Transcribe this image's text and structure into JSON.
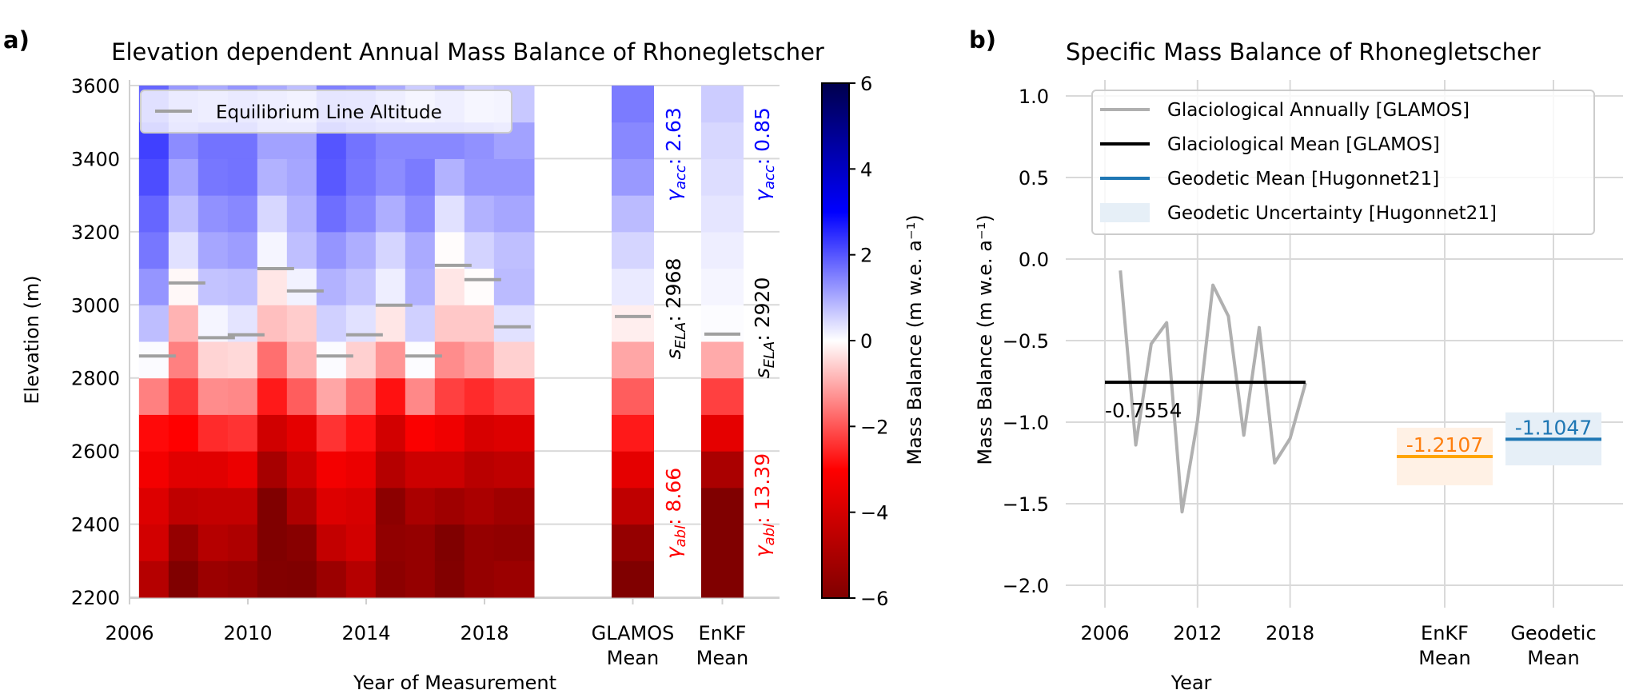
{
  "panels": {
    "a_label": "a)",
    "b_label": "b)"
  },
  "chart_data": [
    {
      "type": "heatmap",
      "title": "Elevation dependent Annual Mass Balance of Rhonegletscher",
      "xlabel": "Year of Measurement",
      "ylabel": "Elevation (m)",
      "x_ticks": [
        "2006",
        "2010",
        "2014",
        "2018"
      ],
      "extra_x_ticks": [
        [
          "GLAMOS",
          "Mean"
        ],
        [
          "EnKF",
          "Mean"
        ]
      ],
      "y_ticks": [
        "2200",
        "2400",
        "2600",
        "2800",
        "3000",
        "3200",
        "3400",
        "3600"
      ],
      "ylim": [
        2200,
        3600
      ],
      "grid": true,
      "colormap": "seismic_r",
      "colorbar": {
        "label": "Mass Balance (m w.e. a⁻¹)",
        "range": [
          -6,
          6
        ],
        "ticks": [
          "−6",
          "−4",
          "−2",
          "0",
          "2",
          "4",
          "6"
        ]
      },
      "legend": {
        "entries": [
          "Equilibrium Line Altitude"
        ],
        "placement": "top-left",
        "color": "#a0a0a0"
      },
      "years": [
        2007,
        2008,
        2009,
        2010,
        2011,
        2012,
        2013,
        2014,
        2015,
        2016,
        2017,
        2018,
        2019
      ],
      "elevation_bins": [
        2200,
        2300,
        2400,
        2500,
        2600,
        2700,
        2800,
        2900,
        3000,
        3100,
        3200,
        3300,
        3400,
        3500
      ],
      "values": [
        [
          -4.75,
          -6,
          -5.35,
          -5.5,
          -5.95,
          -6,
          -5.35,
          -4.75,
          -5.7,
          -5.5,
          -5.95,
          -5.5,
          -5.35
        ],
        [
          -4.05,
          -5.5,
          -4.75,
          -4.9,
          -6,
          -5.8,
          -4.4,
          -4.05,
          -5.6,
          -5.5,
          -6,
          -5.5,
          -5.6
        ],
        [
          -3.8,
          -4.5,
          -4.4,
          -4.4,
          -6,
          -4.9,
          -3.8,
          -3.95,
          -5.7,
          -5.0,
          -5.25,
          -5.0,
          -5.25
        ],
        [
          -3.25,
          -3.7,
          -3.7,
          -3.45,
          -5.1,
          -4.2,
          -3.25,
          -3.45,
          -4.75,
          -4.2,
          -4.2,
          -4.65,
          -4.5
        ],
        [
          -2.9,
          -3.0,
          -2.5,
          -2.4,
          -4.1,
          -3.6,
          -2.4,
          -2.8,
          -4.05,
          -3.1,
          -3.35,
          -3.95,
          -3.8
        ],
        [
          -1.5,
          -2.35,
          -1.35,
          -1.4,
          -2.7,
          -1.9,
          -1.05,
          -1.7,
          -2.8,
          -1.4,
          -2.25,
          -2.5,
          -2.25
        ],
        [
          0.05,
          -1.5,
          -0.5,
          -0.45,
          -1.7,
          -0.9,
          0.05,
          -0.55,
          -1.25,
          0.03,
          -1.35,
          -1.1,
          -0.55
        ],
        [
          0.76,
          -0.9,
          0.12,
          0.32,
          -0.75,
          -0.6,
          0.55,
          0.35,
          -0.3,
          0.55,
          -0.65,
          -0.65,
          0.35
        ],
        [
          1.25,
          -0.08,
          0.7,
          0.75,
          -0.3,
          0.15,
          0.9,
          0.7,
          0.2,
          0.9,
          -0.3,
          -0.03,
          0.8
        ],
        [
          1.6,
          0.35,
          1.05,
          1.15,
          0.12,
          0.75,
          1.25,
          0.95,
          0.5,
          1.0,
          -0.03,
          0.52,
          0.75
        ],
        [
          1.8,
          0.75,
          1.3,
          1.4,
          0.47,
          0.9,
          1.7,
          1.4,
          0.95,
          1.35,
          0.35,
          0.9,
          1.05
        ],
        [
          2.1,
          1.05,
          1.6,
          1.65,
          0.9,
          1.05,
          1.95,
          1.6,
          1.35,
          1.55,
          0.9,
          1.25,
          1.25
        ],
        [
          2.25,
          1.35,
          1.65,
          1.65,
          1.1,
          1.1,
          2.0,
          1.65,
          1.4,
          1.4,
          1.4,
          1.3,
          1.1
        ],
        [
          1.8,
          1.2,
          1.0,
          1.25,
          1.0,
          0.75,
          1.5,
          1.4,
          1.0,
          0.6,
          0.95,
          0.55,
          0.65
        ]
      ],
      "ela": [
        2860,
        3060,
        2910,
        2918,
        3099,
        3038,
        2860,
        2918,
        2999,
        2860,
        3108,
        3069,
        2940
      ],
      "mean_columns": [
        {
          "name": "GLAMOS Mean",
          "values": [
            -6.0,
            -5.5,
            -4.5,
            -3.6,
            -2.7,
            -1.9,
            -1.05,
            -0.2,
            0.25,
            0.5,
            0.8,
            1.2,
            1.4,
            1.55
          ],
          "ela": 2968,
          "annotations": {
            "acc": {
              "symbol": "γ",
              "sub": "acc",
              "value": ": 2.63",
              "color": "#0000ff"
            },
            "ela": {
              "symbol": "s",
              "sub": "ELA",
              "value": ": 2968",
              "color": "#000000"
            },
            "abl": {
              "symbol": "γ",
              "sub": "abl",
              "value": ": 8.66",
              "color": "#ff0000"
            }
          }
        },
        {
          "name": "EnKF Mean",
          "values": [
            -6,
            -6,
            -6,
            -5.0,
            -3.6,
            -2.25,
            -1.0,
            0.03,
            0.12,
            0.2,
            0.3,
            0.4,
            0.47,
            0.6
          ],
          "ela": 2920,
          "annotations": {
            "acc": {
              "symbol": "γ",
              "sub": "acc",
              "value": ": 0.85",
              "color": "#0000ff"
            },
            "ela": {
              "symbol": "s",
              "sub": "ELA",
              "value": ": 2920",
              "color": "#000000"
            },
            "abl": {
              "symbol": "γ",
              "sub": "abl",
              "value": ": 13.39",
              "color": "#ff0000"
            }
          }
        }
      ]
    },
    {
      "type": "line",
      "title": "Specific Mass Balance of Rhonegletscher",
      "xlabel": "Year",
      "ylabel": "Mass Balance (m w.e. a⁻¹)",
      "x_ticks": [
        "2006",
        "2012",
        "2018"
      ],
      "extra_x_ticks": [
        [
          "EnKF",
          "Mean"
        ],
        [
          "Geodetic",
          "Mean"
        ]
      ],
      "y_ticks": [
        "1.0",
        "0.5",
        "0.0",
        "−0.5",
        "−1.0",
        "−1.5",
        "−2.0"
      ],
      "ylim": [
        -2.0,
        1.0
      ],
      "grid": true,
      "legend": {
        "placement": "top-right",
        "entries": [
          {
            "label": "Glaciological Annually [GLAMOS]",
            "color": "#b0b0b0",
            "kind": "line"
          },
          {
            "label": "Glaciological Mean [GLAMOS]",
            "color": "#000000",
            "kind": "line"
          },
          {
            "label": "Geodetic Mean [Hugonnet21]",
            "color": "#1f77b4",
            "kind": "line"
          },
          {
            "label": "Geodetic Uncertainty [Hugonnet21]",
            "color": "#e6eff7",
            "kind": "patch"
          }
        ]
      },
      "series": [
        {
          "name": "Glaciological Annually [GLAMOS]",
          "color": "#b0b0b0",
          "x": [
            2007,
            2008,
            2009,
            2010,
            2011,
            2012,
            2013,
            2014,
            2015,
            2016,
            2017,
            2018,
            2019
          ],
          "y": [
            -0.07,
            -1.14,
            -0.52,
            -0.39,
            -1.55,
            -0.99,
            -0.16,
            -0.35,
            -1.08,
            -0.42,
            -1.25,
            -1.1,
            -0.76
          ]
        },
        {
          "name": "Glaciological Mean [GLAMOS]",
          "color": "#000000",
          "x": [
            2006,
            2019
          ],
          "value": -0.7554,
          "label": "-0.7554"
        }
      ],
      "means": [
        {
          "category": "EnKF Mean",
          "value": -1.2107,
          "label": "-1.2107",
          "uncertainty": [
            -1.387,
            -1.034
          ],
          "line_color": "#ffa500",
          "text_color": "#ff7f0e",
          "fill_color": "#fff1e5"
        },
        {
          "category": "Geodetic Mean",
          "value": -1.1047,
          "label": "-1.1047",
          "uncertainty": [
            -1.265,
            -0.94
          ],
          "line_color": "#1f77b4",
          "text_color": "#1f77b4",
          "fill_color": "#e6eff7"
        }
      ]
    }
  ]
}
